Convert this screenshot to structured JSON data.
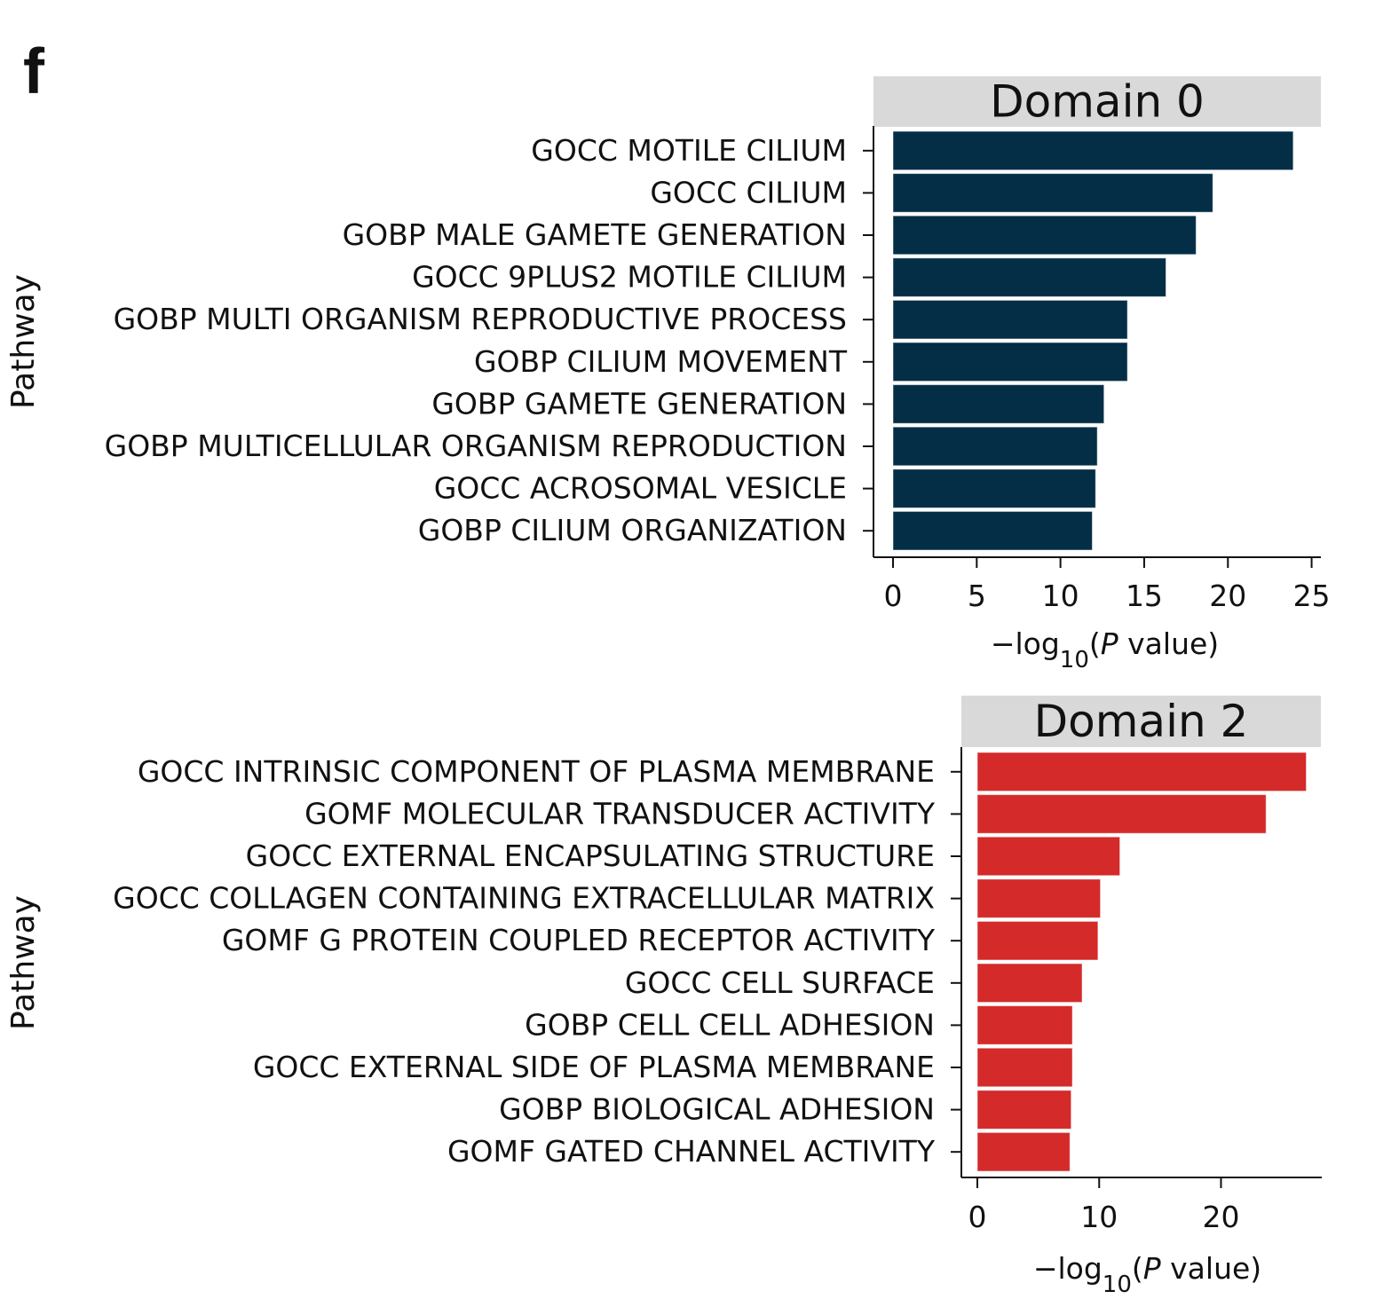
{
  "panel_letter": "f",
  "chart_data": [
    {
      "type": "bar",
      "orientation": "horizontal",
      "title": "Domain 0",
      "xlabel": "−log10(P value)",
      "ylabel": "Pathway",
      "xlim": [
        0,
        25.5
      ],
      "xticks": [
        0,
        5,
        10,
        15,
        20,
        25
      ],
      "bar_color": "#032e46",
      "categories": [
        "GOCC MOTILE CILIUM",
        "GOCC CILIUM",
        "GOBP MALE GAMETE GENERATION",
        "GOCC 9PLUS2 MOTILE CILIUM",
        "GOBP MULTI ORGANISM REPRODUCTIVE PROCESS",
        "GOBP CILIUM MOVEMENT",
        "GOBP GAMETE GENERATION",
        "GOBP MULTICELLULAR ORGANISM REPRODUCTION",
        "GOCC ACROSOMAL VESICLE",
        "GOBP CILIUM ORGANIZATION"
      ],
      "values": [
        23.9,
        19.1,
        18.1,
        16.3,
        14.0,
        14.0,
        12.6,
        12.2,
        12.1,
        11.9
      ]
    },
    {
      "type": "bar",
      "orientation": "horizontal",
      "title": "Domain 2",
      "xlabel": "−log10(P value)",
      "ylabel": "Pathway",
      "xlim": [
        0,
        28.2
      ],
      "xticks": [
        0,
        10,
        20
      ],
      "bar_color": "#d42a2a",
      "categories": [
        "GOCC INTRINSIC COMPONENT OF PLASMA MEMBRANE",
        "GOMF MOLECULAR TRANSDUCER ACTIVITY",
        "GOCC EXTERNAL ENCAPSULATING STRUCTURE",
        "GOCC COLLAGEN CONTAINING EXTRACELLULAR MATRIX",
        "GOMF G PROTEIN COUPLED RECEPTOR ACTIVITY",
        "GOCC CELL SURFACE",
        "GOBP CELL CELL ADHESION",
        "GOCC EXTERNAL SIDE OF PLASMA MEMBRANE",
        "GOBP BIOLOGICAL ADHESION",
        "GOMF GATED CHANNEL ACTIVITY"
      ],
      "values": [
        27.0,
        23.7,
        11.7,
        10.1,
        9.9,
        8.6,
        7.8,
        7.8,
        7.7,
        7.6
      ]
    }
  ]
}
